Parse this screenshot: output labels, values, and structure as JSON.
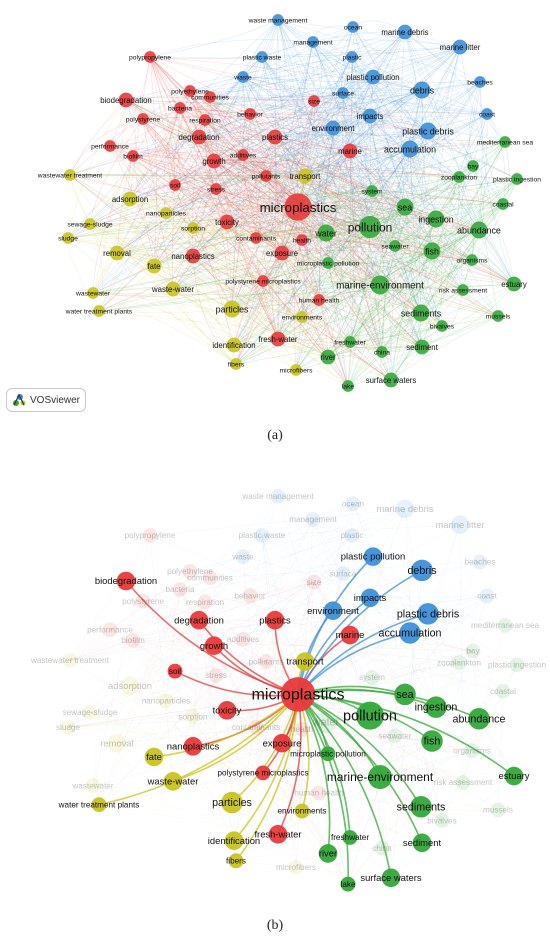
{
  "panel_a": {
    "caption": "(a)",
    "badge": {
      "icon": "vosviewer-logo-icon",
      "label": "VOSviewer"
    }
  },
  "panel_b": {
    "caption": "(b)",
    "focus_term": "microplastics"
  },
  "colors": {
    "red": "#e8393a",
    "blue": "#3d8fd8",
    "green": "#34a83a",
    "yellow": "#c8c41c"
  },
  "terms": [
    {
      "label": "waste management",
      "cluster": "blue",
      "weight": 1
    },
    {
      "label": "ocean",
      "cluster": "blue",
      "weight": 1
    },
    {
      "label": "marine debris",
      "cluster": "blue",
      "weight": 2
    },
    {
      "label": "marine litter",
      "cluster": "blue",
      "weight": 2
    },
    {
      "label": "management",
      "cluster": "blue",
      "weight": 1
    },
    {
      "label": "polypropylene",
      "cluster": "red",
      "weight": 1
    },
    {
      "label": "plastic waste",
      "cluster": "blue",
      "weight": 1
    },
    {
      "label": "plastic",
      "cluster": "blue",
      "weight": 1
    },
    {
      "label": "waste",
      "cluster": "blue",
      "weight": 1
    },
    {
      "label": "plastic pollution",
      "cluster": "blue",
      "weight": 2
    },
    {
      "label": "beaches",
      "cluster": "blue",
      "weight": 1
    },
    {
      "label": "debris",
      "cluster": "blue",
      "weight": 3
    },
    {
      "label": "polyethylene",
      "cluster": "red",
      "weight": 1
    },
    {
      "label": "surface",
      "cluster": "blue",
      "weight": 1
    },
    {
      "label": "size",
      "cluster": "red",
      "weight": 1
    },
    {
      "label": "bacteria",
      "cluster": "red",
      "weight": 1
    },
    {
      "label": "behavior",
      "cluster": "red",
      "weight": 1
    },
    {
      "label": "impacts",
      "cluster": "blue",
      "weight": 2
    },
    {
      "label": "coast",
      "cluster": "blue",
      "weight": 1
    },
    {
      "label": "polystyrene",
      "cluster": "red",
      "weight": 1
    },
    {
      "label": "environment",
      "cluster": "blue",
      "weight": 2
    },
    {
      "label": "plastic debris",
      "cluster": "blue",
      "weight": 3
    },
    {
      "label": "degradation",
      "cluster": "red",
      "weight": 2
    },
    {
      "label": "plastics",
      "cluster": "red",
      "weight": 2
    },
    {
      "label": "performance",
      "cluster": "red",
      "weight": 1
    },
    {
      "label": "mediterranean sea",
      "cluster": "green",
      "weight": 1
    },
    {
      "label": "biofilm",
      "cluster": "red",
      "weight": 1
    },
    {
      "label": "marine",
      "cluster": "red",
      "weight": 2
    },
    {
      "label": "accumulation",
      "cluster": "blue",
      "weight": 3
    },
    {
      "label": "growth",
      "cluster": "red",
      "weight": 2
    },
    {
      "label": "additives",
      "cluster": "red",
      "weight": 1
    },
    {
      "label": "bay",
      "cluster": "green",
      "weight": 1
    },
    {
      "label": "pollutants",
      "cluster": "red",
      "weight": 1
    },
    {
      "label": "transport",
      "cluster": "yellow",
      "weight": 2
    },
    {
      "label": "zooplankton",
      "cluster": "green",
      "weight": 1
    },
    {
      "label": "plastic ingestion",
      "cluster": "green",
      "weight": 1
    },
    {
      "label": "soil",
      "cluster": "red",
      "weight": 1
    },
    {
      "label": "stress",
      "cluster": "red",
      "weight": 1
    },
    {
      "label": "system",
      "cluster": "green",
      "weight": 1
    },
    {
      "label": "adsorption",
      "cluster": "yellow",
      "weight": 2
    },
    {
      "label": "nanoparticles",
      "cluster": "yellow",
      "weight": 1
    },
    {
      "label": "microplastics",
      "cluster": "red",
      "weight": 10
    },
    {
      "label": "sea",
      "cluster": "green",
      "weight": 3
    },
    {
      "label": "ingestion",
      "cluster": "green",
      "weight": 3
    },
    {
      "label": "coastal",
      "cluster": "green",
      "weight": 1
    },
    {
      "label": "sewage-sludge",
      "cluster": "yellow",
      "weight": 1
    },
    {
      "label": "sorption",
      "cluster": "yellow",
      "weight": 1
    },
    {
      "label": "toxicity",
      "cluster": "red",
      "weight": 2
    },
    {
      "label": "contaminants",
      "cluster": "red",
      "weight": 1
    },
    {
      "label": "pollution",
      "cluster": "green",
      "weight": 6
    },
    {
      "label": "sludge",
      "cluster": "yellow",
      "weight": 1
    },
    {
      "label": "water",
      "cluster": "green",
      "weight": 3
    },
    {
      "label": "health",
      "cluster": "red",
      "weight": 1
    },
    {
      "label": "abundance",
      "cluster": "green",
      "weight": 3
    },
    {
      "label": "removal",
      "cluster": "yellow",
      "weight": 2
    },
    {
      "label": "seawater",
      "cluster": "green",
      "weight": 1
    },
    {
      "label": "fish",
      "cluster": "green",
      "weight": 3
    },
    {
      "label": "nanoplastics",
      "cluster": "red",
      "weight": 2
    },
    {
      "label": "exposure",
      "cluster": "red",
      "weight": 2
    },
    {
      "label": "microplastic pollution",
      "cluster": "green",
      "weight": 1
    },
    {
      "label": "organisms",
      "cluster": "green",
      "weight": 1
    },
    {
      "label": "fate",
      "cluster": "yellow",
      "weight": 2
    },
    {
      "label": "marine-environment",
      "cluster": "green",
      "weight": 4
    },
    {
      "label": "polystyrene microplastics",
      "cluster": "red",
      "weight": 1
    },
    {
      "label": "waste-water",
      "cluster": "yellow",
      "weight": 2
    },
    {
      "label": "estuary",
      "cluster": "green",
      "weight": 2
    },
    {
      "label": "wastewater",
      "cluster": "yellow",
      "weight": 1
    },
    {
      "label": "human health",
      "cluster": "red",
      "weight": 1
    },
    {
      "label": "risk assessment",
      "cluster": "green",
      "weight": 1
    },
    {
      "label": "particles",
      "cluster": "yellow",
      "weight": 3
    },
    {
      "label": "sediments",
      "cluster": "green",
      "weight": 3
    },
    {
      "label": "environments",
      "cluster": "yellow",
      "weight": 1
    },
    {
      "label": "water treatment plants",
      "cluster": "yellow",
      "weight": 1
    },
    {
      "label": "bivalves",
      "cluster": "green",
      "weight": 1
    },
    {
      "label": "mussels",
      "cluster": "green",
      "weight": 1
    },
    {
      "label": "fresh-water",
      "cluster": "red",
      "weight": 2
    },
    {
      "label": "freshwater",
      "cluster": "green",
      "weight": 1
    },
    {
      "label": "identification",
      "cluster": "yellow",
      "weight": 2
    },
    {
      "label": "sediment",
      "cluster": "green",
      "weight": 2
    },
    {
      "label": "river",
      "cluster": "green",
      "weight": 2
    },
    {
      "label": "china",
      "cluster": "green",
      "weight": 1
    },
    {
      "label": "fibers",
      "cluster": "yellow",
      "weight": 1
    },
    {
      "label": "microfibers",
      "cluster": "yellow",
      "weight": 1
    },
    {
      "label": "lake",
      "cluster": "green",
      "weight": 1
    },
    {
      "label": "surface waters",
      "cluster": "green",
      "weight": 2
    },
    {
      "label": "biodegradation",
      "cluster": "red",
      "weight": 2
    },
    {
      "label": "communities",
      "cluster": "red",
      "weight": 1
    },
    {
      "label": "respiration",
      "cluster": "red",
      "weight": 1
    },
    {
      "label": "wastewater treatment",
      "cluster": "yellow",
      "weight": 1
    }
  ],
  "panel_b_links": [
    "biodegradation",
    "degradation",
    "plastics",
    "growth",
    "soil",
    "toxicity",
    "nanoplastics",
    "exposure",
    "marine",
    "environment",
    "transport",
    "plastic pollution",
    "debris",
    "impacts",
    "plastic debris",
    "accumulation",
    "sea",
    "pollution",
    "ingestion",
    "abundance",
    "fish",
    "estuary",
    "marine-environment",
    "sediments",
    "sediment",
    "surface waters",
    "river",
    "lake",
    "freshwater",
    "fresh-water",
    "identification",
    "fibers",
    "particles",
    "water treatment plants",
    "waste-water",
    "fate",
    "polystyrene microplastics",
    "microplastic pollution",
    "environments"
  ]
}
